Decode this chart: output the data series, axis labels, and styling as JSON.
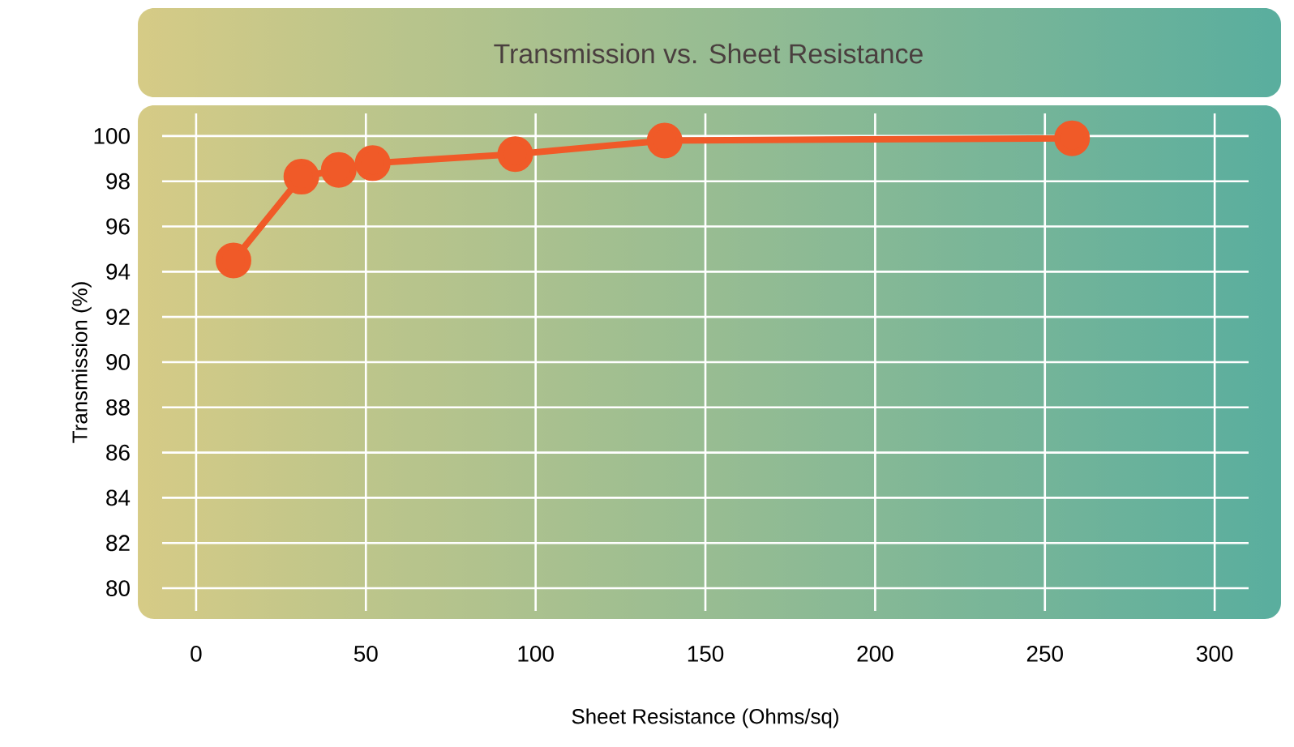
{
  "chart_data": {
    "type": "line",
    "title": "Transmission vs. Sheet Resistance",
    "xlabel": "Sheet Resistance (Ohms/sq)",
    "ylabel": "Transmission (%)",
    "x": [
      11,
      31,
      42,
      52,
      94,
      138,
      258
    ],
    "series": [
      {
        "color": "#f05a28",
        "values": [
          94.5,
          98.2,
          98.5,
          98.8,
          99.2,
          99.8,
          99.9
        ]
      }
    ],
    "xlim": [
      -10,
      310
    ],
    "ylim": [
      79,
      101
    ],
    "xticks": [
      0,
      50,
      100,
      150,
      200,
      250,
      300
    ],
    "yticks": [
      80,
      82,
      84,
      86,
      88,
      90,
      92,
      94,
      96,
      98,
      100
    ],
    "grid": true,
    "marker": "circle",
    "line_style": "solid"
  }
}
